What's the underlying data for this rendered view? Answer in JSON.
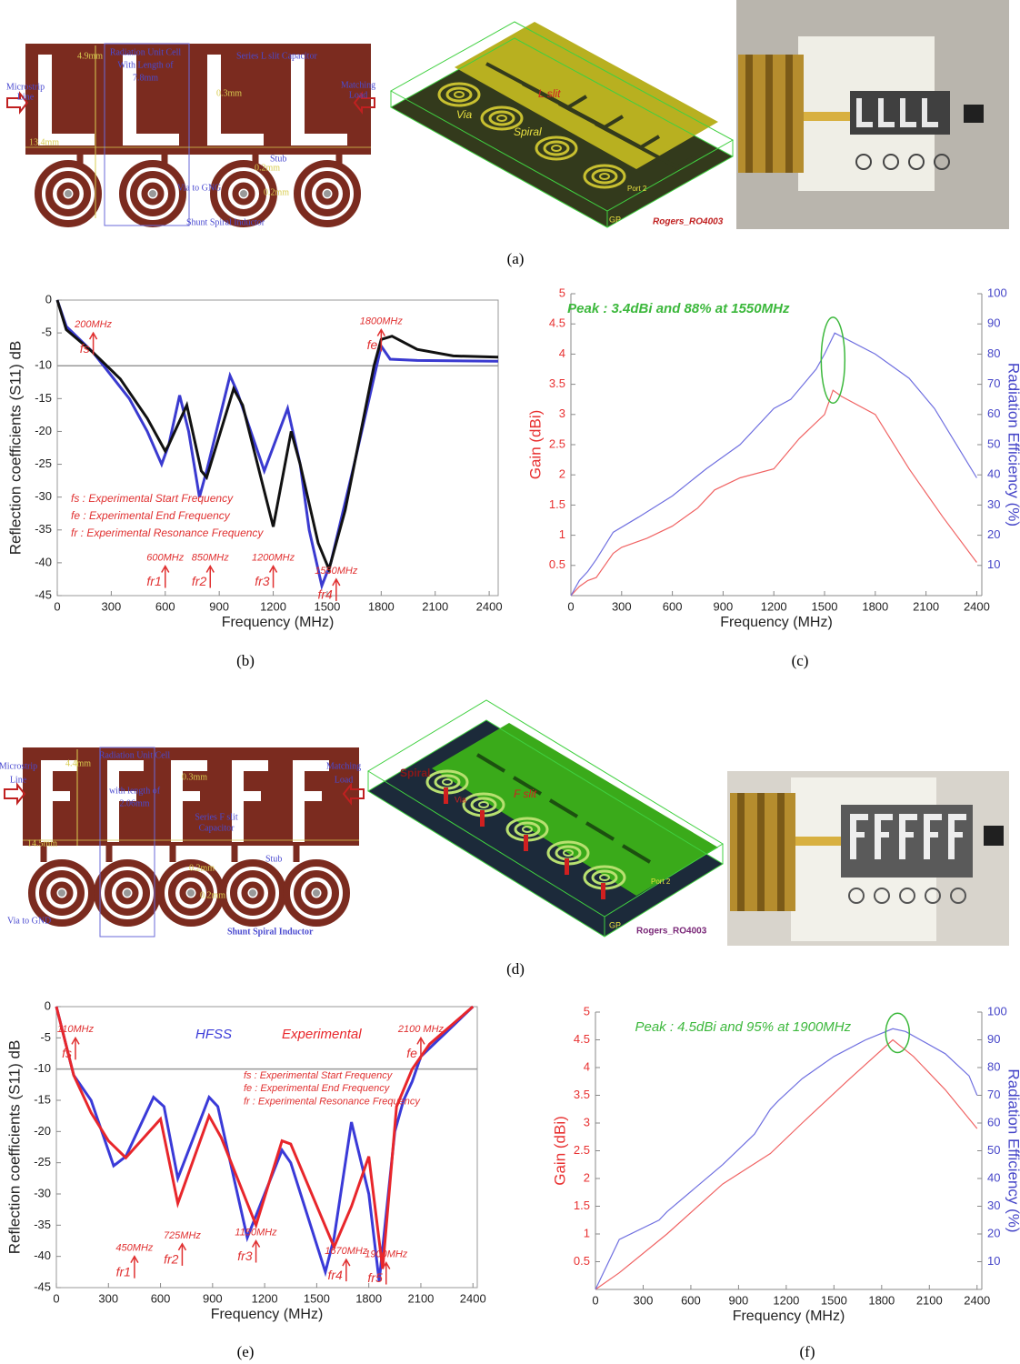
{
  "captions": [
    "(a)",
    "(b)",
    "(c)",
    "(d)",
    "(e)",
    "(f)"
  ],
  "panel_a": {
    "layout_labels": [
      "4.9mm",
      "Radiation Unit Cell",
      "With Length of",
      "7.8mm",
      "Series L slit Capacitor",
      "Microstrip",
      "Line",
      "Matching",
      "Load",
      "0.3mm",
      "13.4mm",
      "Stub",
      "0.2mm",
      "0.2mm",
      "Via to GNG",
      "Shunt Spiral Inductor"
    ],
    "model_labels": [
      "L slit",
      "Via",
      "Spiral",
      "Port 2",
      "GP",
      "Rogers_RO4003"
    ]
  },
  "panel_d": {
    "layout_labels": [
      "4.4mm",
      "Radiation Unit Cell",
      "with length of",
      "2.06mm",
      "0.3mm",
      "Series F slit",
      "Capacitor",
      "Microstrip",
      "Line",
      "Matching",
      "Load",
      "14.5mm",
      "Stub",
      "0.2mm",
      "0.2mm",
      "Via to GND",
      "Shunt Spiral Inductor"
    ],
    "model_labels": [
      "Spiral",
      "F slit",
      "Via",
      "Port 2",
      "GP",
      "Rogers_RO4003"
    ]
  },
  "chart_data": [
    {
      "type": "line",
      "xlabel": "Frequency (MHz)",
      "ylabel": "Reflection coefficients (S11) dB",
      "ylabel_color": "#222222",
      "xlim": [
        0,
        2450
      ],
      "ylim": [
        -45,
        0
      ],
      "xticks": [
        0,
        300,
        600,
        900,
        1200,
        1500,
        1800,
        2100,
        2400
      ],
      "yticks": [
        0,
        -5,
        -10,
        -15,
        -20,
        -25,
        -30,
        -35,
        -40,
        -45
      ],
      "box": true,
      "hline": -10,
      "series": [
        {
          "color": "#3a3ad0",
          "x": [
            0,
            50,
            200,
            400,
            500,
            580,
            620,
            680,
            730,
            790,
            830,
            960,
            1000,
            1100,
            1150,
            1280,
            1350,
            1400,
            1470,
            1520,
            1650,
            1800,
            1850,
            2000,
            2450
          ],
          "values": [
            0,
            -4,
            -8,
            -15,
            -20,
            -25,
            -22,
            -14.5,
            -20,
            -30,
            -26,
            -11.5,
            -14,
            -22,
            -26,
            -16.5,
            -25,
            -35,
            -43.5,
            -40,
            -25,
            -7,
            -9,
            -9.2,
            -9.3
          ]
        },
        {
          "color": "#111111",
          "x": [
            0,
            50,
            200,
            350,
            500,
            600,
            620,
            720,
            800,
            830,
            980,
            1030,
            1200,
            1300,
            1350,
            1450,
            1510,
            1600,
            1760,
            1800,
            1860,
            2000,
            2200,
            2450
          ],
          "values": [
            0,
            -4.5,
            -8,
            -12,
            -18,
            -23,
            -22,
            -16,
            -26,
            -27,
            -13.5,
            -16,
            -34.5,
            -20,
            -25,
            -37,
            -41,
            -32,
            -10,
            -6,
            -5.5,
            -7.5,
            -8.5,
            -8.7
          ]
        }
      ],
      "marker_color": "#e03030",
      "markers": [
        {
          "label": "200MHz",
          "symbol": "fs",
          "x": 200,
          "y": -5
        },
        {
          "label": "1800MHz",
          "symbol": "fe",
          "x": 1800,
          "y": -4.5
        },
        {
          "label": "600MHz",
          "symbol": "fr1",
          "x": 600,
          "y": -40.5
        },
        {
          "label": "850MHz",
          "symbol": "fr2",
          "x": 850,
          "y": -40.5
        },
        {
          "label": "1200MHz",
          "symbol": "fr3",
          "x": 1200,
          "y": -40.5
        },
        {
          "label": "1550MHz",
          "symbol": "fr4",
          "x": 1550,
          "y": -42.5
        }
      ],
      "notes": [
        "fs : Experimental Start Frequency",
        "fe : Experimental End Frequency",
        "fr : Experimental Resonance Frequency"
      ]
    },
    {
      "type": "line",
      "xlabel": "Frequency (MHz)",
      "ylabel": "Gain (dBi)",
      "y2label": "Radiation Efficiency (%)",
      "ylabel_color": "#e83030",
      "y2label_color": "#4545c8",
      "xlim": [
        0,
        2430
      ],
      "ylim": [
        0,
        5
      ],
      "y2lim": [
        0,
        100
      ],
      "xticks": [
        0,
        300,
        600,
        900,
        1200,
        1500,
        1800,
        2100,
        2400
      ],
      "yticks": [
        0.5,
        1,
        1.5,
        2,
        2.5,
        3,
        3.5,
        4,
        4.5,
        5
      ],
      "y2ticks": [
        10,
        20,
        30,
        40,
        50,
        60,
        70,
        80,
        90,
        100
      ],
      "box": false,
      "series": [
        {
          "color": "#f06464",
          "x": [
            0,
            50,
            100,
            150,
            250,
            300,
            450,
            600,
            750,
            850,
            1000,
            1200,
            1350,
            1500,
            1550,
            1600,
            1800,
            2000,
            2200,
            2400
          ],
          "values": [
            0,
            0.15,
            0.25,
            0.3,
            0.7,
            0.8,
            0.95,
            1.15,
            1.45,
            1.75,
            1.95,
            2.1,
            2.6,
            3.0,
            3.4,
            3.3,
            3.0,
            2.1,
            1.3,
            0.55
          ]
        },
        {
          "color": "#7070e0",
          "axis": "y2",
          "x": [
            0,
            50,
            100,
            150,
            250,
            400,
            600,
            800,
            1000,
            1200,
            1300,
            1450,
            1500,
            1560,
            1800,
            2000,
            2150,
            2400
          ],
          "values": [
            0,
            5,
            8,
            12,
            21,
            26,
            33,
            42,
            50,
            62,
            65,
            75,
            80,
            87,
            80,
            72,
            62,
            39
          ]
        }
      ],
      "peak": {
        "label": "Peak : 3.4dBi and 88% at 1550MHz",
        "x": 1550,
        "gain": 3.4,
        "efficiency": 88,
        "color": "#3cb83c"
      }
    },
    {
      "type": "line",
      "xlabel": "Frequency (MHz)",
      "ylabel": "Reflection coefficients (S11) dB",
      "ylabel_color": "#222222",
      "xlim": [
        0,
        2425
      ],
      "ylim": [
        -45,
        0
      ],
      "xticks": [
        0,
        300,
        600,
        900,
        1200,
        1500,
        1800,
        2100,
        2400
      ],
      "yticks": [
        0,
        -5,
        -10,
        -15,
        -20,
        -25,
        -30,
        -35,
        -40,
        -45
      ],
      "box": true,
      "hline": -10,
      "series": [
        {
          "name": "HFSS",
          "color": "#3a3ad8",
          "x": [
            0,
            100,
            200,
            330,
            400,
            560,
            620,
            700,
            880,
            930,
            1100,
            1300,
            1350,
            1550,
            1600,
            1700,
            1800,
            1860,
            1950,
            2000,
            2050,
            2100,
            2250,
            2400
          ],
          "values": [
            0,
            -11,
            -15,
            -25.5,
            -24,
            -14.5,
            -16,
            -27.5,
            -14.5,
            -16,
            -37,
            -23,
            -25,
            -42.5,
            -37,
            -18.5,
            -30,
            -44,
            -20,
            -15,
            -12,
            -8,
            -4,
            0
          ]
        },
        {
          "name": "Experimental",
          "color": "#e8262b",
          "x": [
            0,
            100,
            200,
            300,
            400,
            600,
            700,
            880,
            950,
            1150,
            1300,
            1350,
            1600,
            1700,
            1800,
            1880,
            1960,
            2050,
            2150,
            2400
          ],
          "values": [
            0,
            -11,
            -17,
            -21.5,
            -24.2,
            -18,
            -31.5,
            -17.5,
            -21,
            -35,
            -21.5,
            -22,
            -38.5,
            -32,
            -24,
            -42,
            -16,
            -10,
            -6,
            0
          ]
        }
      ],
      "marker_color": "#e03030",
      "markers": [
        {
          "label": "110MHz",
          "symbol": "fs",
          "x": 110,
          "y": -5
        },
        {
          "label": "2100 MHz",
          "symbol": "fe",
          "x": 2100,
          "y": -5
        },
        {
          "label": "450MHz",
          "symbol": "fr1",
          "x": 450,
          "y": -40
        },
        {
          "label": "725MHz",
          "symbol": "fr2",
          "x": 725,
          "y": -38
        },
        {
          "label": "1150MHz",
          "symbol": "fr3",
          "x": 1150,
          "y": -37.5
        },
        {
          "label": "1670MHz",
          "symbol": "fr4",
          "x": 1670,
          "y": -40.5
        },
        {
          "label": "1900MHz",
          "symbol": "fr5",
          "x": 1900,
          "y": -41
        }
      ],
      "notes": [
        "fs : Experimental Start Frequency",
        "fe : Experimental End Frequency",
        "fr : Experimental Resonance Frequency"
      ]
    },
    {
      "type": "line",
      "xlabel": "Frequency (MHz)",
      "ylabel": "Gain (dBi)",
      "y2label": "Radiation Efficiency (%)",
      "ylabel_color": "#e83030",
      "y2label_color": "#4545c8",
      "xlim": [
        0,
        2430
      ],
      "ylim": [
        0,
        5
      ],
      "y2lim": [
        0,
        100
      ],
      "xticks": [
        0,
        300,
        600,
        900,
        1200,
        1500,
        1800,
        2100,
        2400
      ],
      "yticks": [
        0.5,
        1,
        1.5,
        2,
        2.5,
        3,
        3.5,
        4,
        4.5,
        5
      ],
      "y2ticks": [
        10,
        20,
        30,
        40,
        50,
        60,
        70,
        80,
        90,
        100
      ],
      "box": false,
      "series": [
        {
          "color": "#f06464",
          "x": [
            0,
            150,
            450,
            800,
            1100,
            1300,
            1600,
            1870,
            2000,
            2200,
            2400
          ],
          "values": [
            0,
            0.3,
            1.0,
            1.9,
            2.45,
            3.0,
            3.8,
            4.5,
            4.2,
            3.6,
            2.9
          ]
        },
        {
          "color": "#7070e0",
          "axis": "y2",
          "x": [
            0,
            150,
            400,
            450,
            800,
            1000,
            1100,
            1150,
            1300,
            1500,
            1700,
            1870,
            1950,
            2200,
            2350,
            2400
          ],
          "values": [
            0,
            18,
            25,
            28,
            45,
            56,
            65,
            68,
            76,
            84,
            90,
            94,
            93,
            85,
            77,
            70
          ]
        }
      ],
      "peak": {
        "label": "Peak : 4.5dBi and 95% at 1900MHz",
        "x": 1900,
        "gain": 4.5,
        "efficiency": 95,
        "color": "#3cb83c"
      }
    }
  ]
}
